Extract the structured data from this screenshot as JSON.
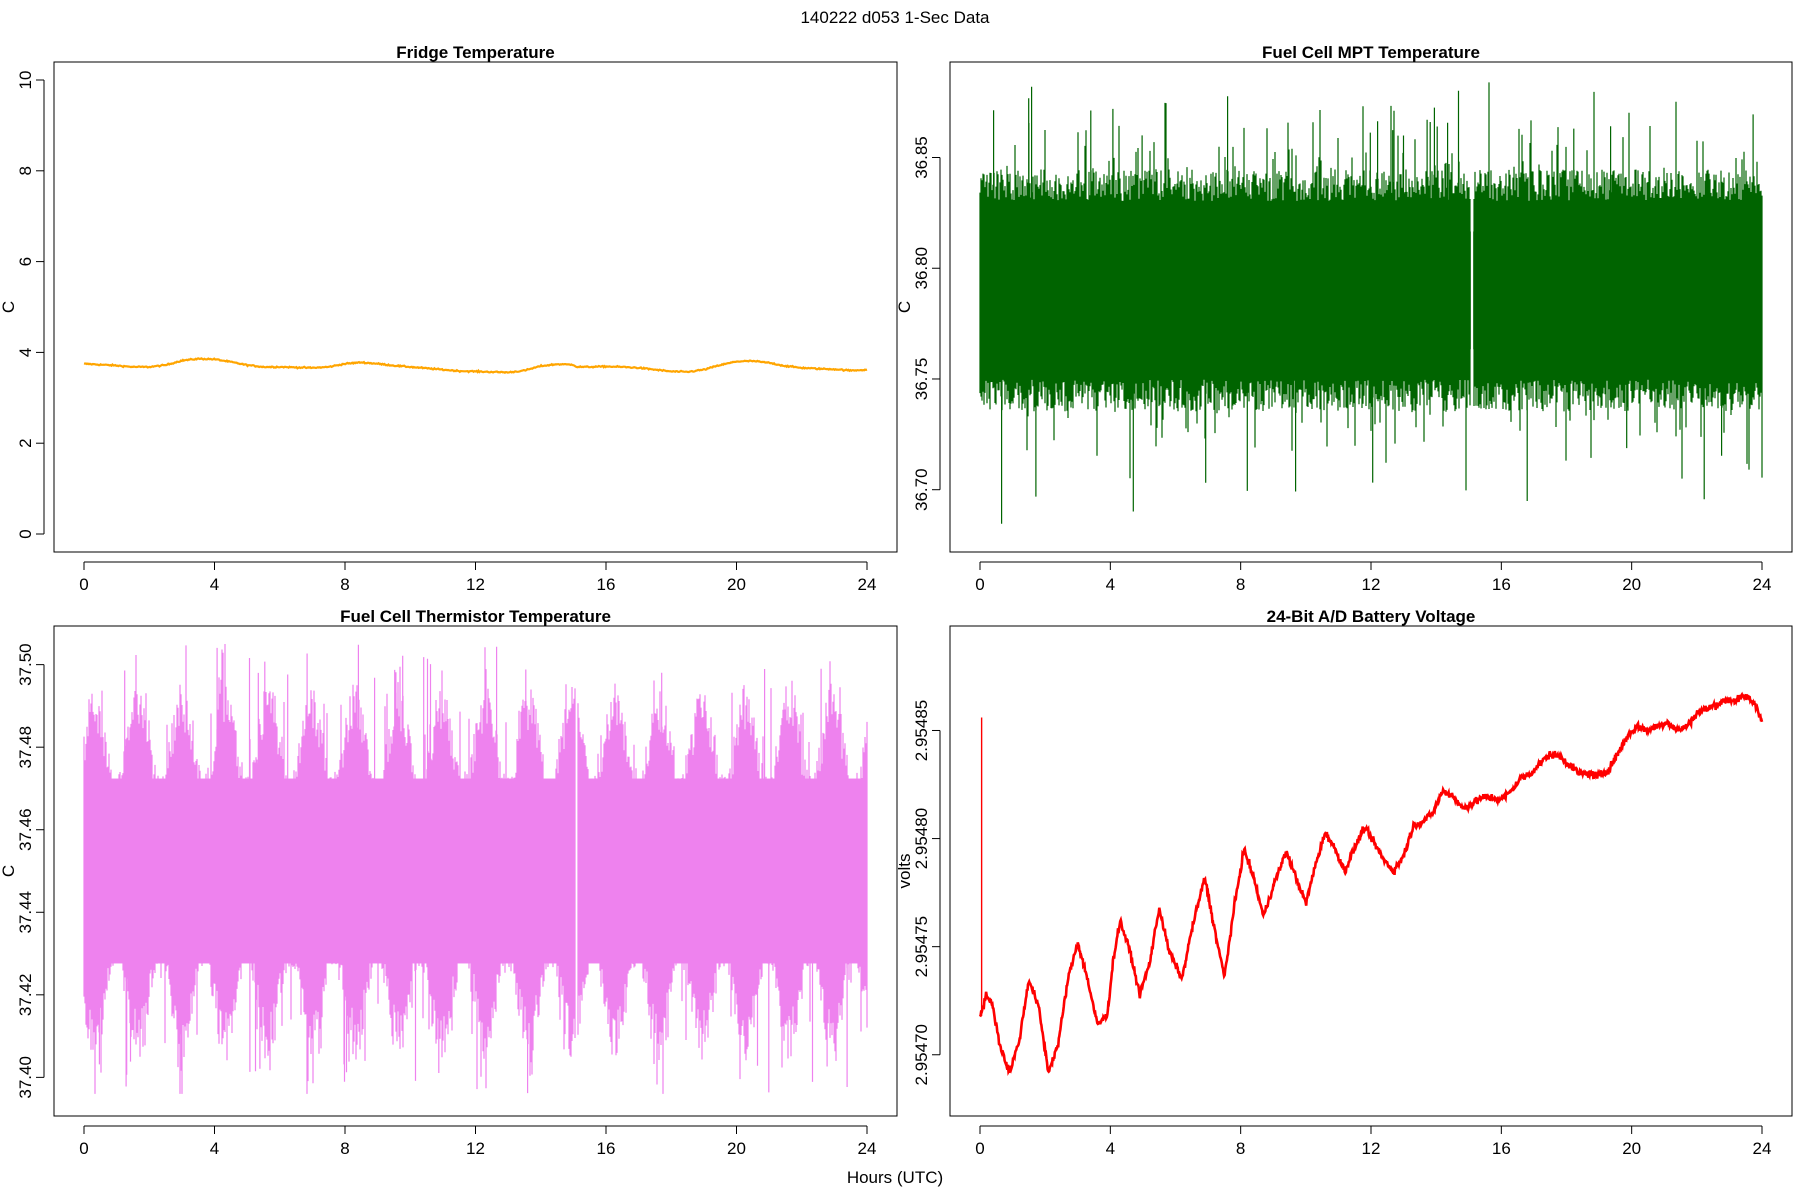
{
  "suptitle": "140222   d053   1-Sec Data",
  "xlabel_common": "Hours (UTC)",
  "chart_data": [
    {
      "id": "fridge",
      "type": "line",
      "title": "Fridge Temperature",
      "ylabel": "C",
      "color": "#FFA500",
      "xlim": [
        0,
        24
      ],
      "ylim": [
        0,
        10
      ],
      "xticks": [
        0,
        4,
        8,
        12,
        16,
        20,
        24
      ],
      "yticks": [
        0,
        2,
        4,
        6,
        8,
        10
      ],
      "ytick_labels": [
        "0",
        "2",
        "4",
        "6",
        "8",
        "10"
      ],
      "x": [
        0,
        0.5,
        1.0,
        1.5,
        2.0,
        2.5,
        3.0,
        3.5,
        4.0,
        4.5,
        5.0,
        5.5,
        6.0,
        6.5,
        7.0,
        7.5,
        8.0,
        8.5,
        9.0,
        9.5,
        10.0,
        10.5,
        11.0,
        11.5,
        12.0,
        12.5,
        13.0,
        13.5,
        14.0,
        14.5,
        15.0,
        15.1,
        15.5,
        16.0,
        16.5,
        17.0,
        17.5,
        18.0,
        18.5,
        19.0,
        19.5,
        20.0,
        20.5,
        21.0,
        21.5,
        22.0,
        22.5,
        23.0,
        23.5,
        24.0
      ],
      "y": [
        3.75,
        3.73,
        3.71,
        3.68,
        3.68,
        3.72,
        3.82,
        3.86,
        3.85,
        3.79,
        3.72,
        3.68,
        3.68,
        3.67,
        3.66,
        3.68,
        3.75,
        3.78,
        3.75,
        3.71,
        3.68,
        3.65,
        3.62,
        3.59,
        3.58,
        3.57,
        3.56,
        3.6,
        3.7,
        3.74,
        3.73,
        3.68,
        3.68,
        3.69,
        3.68,
        3.66,
        3.62,
        3.58,
        3.57,
        3.62,
        3.72,
        3.8,
        3.81,
        3.77,
        3.7,
        3.66,
        3.64,
        3.63,
        3.6,
        3.62
      ],
      "noise": 0.01
    },
    {
      "id": "mpt",
      "type": "line",
      "title": "Fuel Cell MPT Temperature",
      "ylabel": "C",
      "color": "#006400",
      "xlim": [
        0,
        24
      ],
      "ylim": [
        36.68,
        36.885
      ],
      "xticks": [
        0,
        4,
        8,
        12,
        16,
        20,
        24
      ],
      "yticks": [
        36.7,
        36.75,
        36.8,
        36.85
      ],
      "ytick_labels": [
        "36.70",
        "36.75",
        "36.80",
        "36.85"
      ],
      "center": 36.79,
      "band_min": 36.745,
      "band_max": 36.84,
      "spike_min": 36.684,
      "spike_max": 36.884,
      "gap_at": 15.1,
      "noise": 0.045
    },
    {
      "id": "thermistor",
      "type": "line",
      "title": "Fuel Cell Thermistor Temperature",
      "ylabel": "C",
      "color": "#EE82EE",
      "xlim": [
        0,
        24
      ],
      "ylim": [
        37.395,
        37.505
      ],
      "xticks": [
        0,
        4,
        8,
        12,
        16,
        20,
        24
      ],
      "yticks": [
        37.4,
        37.42,
        37.44,
        37.46,
        37.48,
        37.5
      ],
      "ytick_labels": [
        "37.40",
        "37.42",
        "37.44",
        "37.46",
        "37.48",
        "37.50"
      ],
      "center": 37.45,
      "band_min": 37.41,
      "band_max": 37.49,
      "spike_min": 37.396,
      "spike_max": 37.505,
      "gap_at": 15.1,
      "noise": 0.03
    },
    {
      "id": "battery",
      "type": "line",
      "title": "24-Bit A/D Battery Voltage",
      "ylabel": "volts",
      "color": "#FF0000",
      "xlim": [
        0,
        24
      ],
      "ylim": [
        2.95468,
        2.95489
      ],
      "xticks": [
        0,
        4,
        8,
        12,
        16,
        20,
        24
      ],
      "yticks": [
        2.9547,
        2.95475,
        2.9548,
        2.95485
      ],
      "ytick_labels": [
        "2.95470",
        "2.95475",
        "2.95480",
        "2.95485"
      ],
      "spike_x": 0.05,
      "spike_y": 2.954856,
      "x": [
        0.0,
        0.2,
        0.4,
        0.6,
        0.9,
        1.2,
        1.5,
        1.8,
        2.1,
        2.4,
        2.7,
        3.0,
        3.3,
        3.6,
        3.9,
        4.1,
        4.3,
        4.6,
        4.9,
        5.2,
        5.5,
        5.8,
        6.2,
        6.5,
        6.9,
        7.2,
        7.5,
        7.8,
        8.1,
        8.4,
        8.7,
        9.0,
        9.4,
        9.7,
        10.0,
        10.3,
        10.6,
        10.9,
        11.2,
        11.5,
        11.8,
        12.1,
        12.4,
        12.7,
        13.0,
        13.3,
        13.6,
        13.9,
        14.2,
        14.5,
        14.8,
        15.1,
        15.4,
        15.7,
        16.0,
        16.3,
        16.6,
        16.9,
        17.2,
        17.5,
        17.8,
        18.1,
        18.4,
        18.7,
        19.0,
        19.3,
        19.6,
        19.9,
        20.2,
        20.5,
        20.8,
        21.1,
        21.4,
        21.7,
        22.0,
        22.3,
        22.6,
        22.9,
        23.2,
        23.5,
        23.8,
        24.0
      ],
      "y": [
        2.954718,
        2.954728,
        2.954722,
        2.954705,
        2.954692,
        2.954706,
        2.954735,
        2.954722,
        2.954692,
        2.954705,
        2.954735,
        2.954752,
        2.954735,
        2.954714,
        2.954718,
        2.954745,
        2.954762,
        2.954748,
        2.954728,
        2.954742,
        2.954768,
        2.954748,
        2.954735,
        2.954758,
        2.954782,
        2.954758,
        2.954736,
        2.954768,
        2.954795,
        2.954782,
        2.954764,
        2.954778,
        2.954794,
        2.954782,
        2.95477,
        2.954788,
        2.954803,
        2.954795,
        2.954785,
        2.954796,
        2.954805,
        2.954798,
        2.95479,
        2.954785,
        2.954792,
        2.954806,
        2.954808,
        2.954812,
        2.954822,
        2.95482,
        2.954814,
        2.954816,
        2.954819,
        2.954819,
        2.954818,
        2.954822,
        2.954828,
        2.95483,
        2.954835,
        2.954839,
        2.954838,
        2.954834,
        2.95483,
        2.95483,
        2.954829,
        2.954832,
        2.95484,
        2.954848,
        2.954852,
        2.95485,
        2.954852,
        2.954854,
        2.95485,
        2.954852,
        2.954858,
        2.95486,
        2.954862,
        2.954864,
        2.954864,
        2.954866,
        2.954862,
        2.954855
      ],
      "noise": 1.2e-06
    }
  ]
}
